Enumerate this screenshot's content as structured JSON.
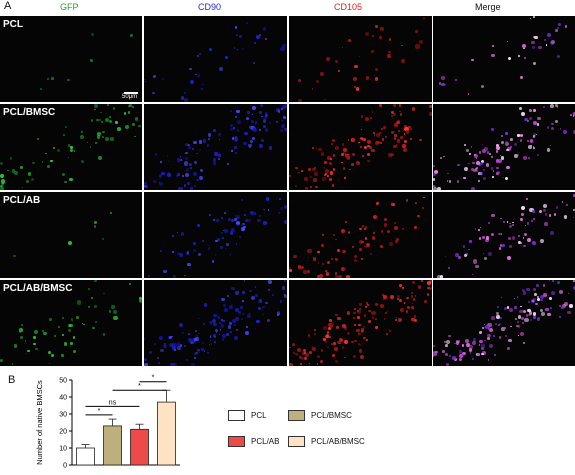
{
  "panel_a": {
    "letter": "A",
    "channels": [
      {
        "label": "GFP",
        "color": "#1fa81f"
      },
      {
        "label": "CD90",
        "color": "#2323e0"
      },
      {
        "label": "CD105",
        "color": "#e02020"
      },
      {
        "label": "Merge",
        "color": "#111111"
      }
    ],
    "rows": [
      {
        "label": "PCL",
        "intensity": [
          0.05,
          0.25,
          0.25,
          0.25
        ]
      },
      {
        "label": "PCL/BMSC",
        "intensity": [
          0.5,
          0.85,
          0.9,
          0.9
        ]
      },
      {
        "label": "PCL/AB",
        "intensity": [
          0.04,
          0.55,
          0.55,
          0.55
        ]
      },
      {
        "label": "PCL/AB/BMSC",
        "intensity": [
          0.4,
          0.95,
          1.0,
          1.0
        ]
      }
    ],
    "scale_bar": "50μm"
  },
  "panel_b": {
    "letter": "B"
  },
  "chart_data": {
    "type": "bar",
    "categories": [
      "PCL",
      "PCL/BMSC",
      "PCL/AB",
      "PCL/AB/BMSC"
    ],
    "values": [
      10,
      23,
      21,
      37
    ],
    "errors": [
      2,
      4,
      3,
      7
    ],
    "colors": [
      "#ffffff",
      "#bdb07a",
      "#ef4a4a",
      "#fde2c4"
    ],
    "ylabel": "Number of native BMSCs",
    "ylim": [
      0,
      50
    ],
    "yticks": [
      0,
      10,
      20,
      30,
      40,
      50
    ],
    "significance": [
      {
        "from": 0,
        "to": 1,
        "label": "*"
      },
      {
        "from": 0,
        "to": 2,
        "label": "ns"
      },
      {
        "from": 1,
        "to": 3,
        "label": "*"
      },
      {
        "from": 2,
        "to": 3,
        "label": "*"
      }
    ],
    "legend": [
      {
        "label": "PCL",
        "color": "#ffffff"
      },
      {
        "label": "PCL/BMSC",
        "color": "#bdb07a"
      },
      {
        "label": "PCL/AB",
        "color": "#ef4a4a"
      },
      {
        "label": "PCL/AB/BMSC",
        "color": "#fde2c4"
      }
    ]
  }
}
